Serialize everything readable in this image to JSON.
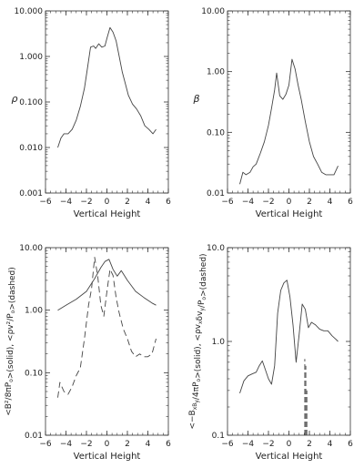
{
  "chart_data": [
    {
      "type": "line",
      "ylabel": "ρ",
      "xlabel": "Vertical Height",
      "xlim": [
        -6,
        6
      ],
      "ylim": [
        0.001,
        10
      ],
      "yscale": "log",
      "xticks": [
        "−6",
        "−4",
        "−2",
        "0",
        "2",
        "4",
        "6"
      ],
      "yticks": [
        "0.001",
        "0.010",
        "0.100",
        "1.000",
        "10.000"
      ],
      "series": [
        {
          "style": "solid",
          "x": [
            -4.8,
            -4.5,
            -4.2,
            -3.8,
            -3.4,
            -3.0,
            -2.6,
            -2.2,
            -1.9,
            -1.6,
            -1.3,
            -1.1,
            -0.8,
            -0.5,
            -0.2,
            0.0,
            0.3,
            0.6,
            0.9,
            1.2,
            1.5,
            1.8,
            2.1,
            2.5,
            2.9,
            3.3,
            3.7,
            4.1,
            4.5,
            4.8
          ],
          "y": [
            0.01,
            0.016,
            0.02,
            0.02,
            0.025,
            0.04,
            0.08,
            0.2,
            0.55,
            1.6,
            1.7,
            1.5,
            1.9,
            1.6,
            1.7,
            2.5,
            4.3,
            3.4,
            2.2,
            1.0,
            0.45,
            0.25,
            0.14,
            0.09,
            0.07,
            0.05,
            0.03,
            0.025,
            0.02,
            0.025
          ]
        }
      ]
    },
    {
      "type": "line",
      "ylabel": "β",
      "xlabel": "Vertical Height",
      "xlim": [
        -6,
        6
      ],
      "ylim": [
        0.01,
        10
      ],
      "yscale": "log",
      "xticks": [
        "−6",
        "−4",
        "−2",
        "0",
        "2",
        "4",
        "6"
      ],
      "yticks": [
        "0.01",
        "0.10",
        "1.00",
        "10.00"
      ],
      "series": [
        {
          "style": "solid",
          "x": [
            -4.8,
            -4.5,
            -4.2,
            -3.8,
            -3.5,
            -3.2,
            -2.8,
            -2.4,
            -2.0,
            -1.7,
            -1.4,
            -1.2,
            -0.9,
            -0.6,
            -0.3,
            0.0,
            0.3,
            0.6,
            0.9,
            1.2,
            1.6,
            2.0,
            2.4,
            2.8,
            3.2,
            3.6,
            4.0,
            4.4,
            4.8
          ],
          "y": [
            0.014,
            0.022,
            0.02,
            0.022,
            0.027,
            0.03,
            0.045,
            0.07,
            0.13,
            0.25,
            0.5,
            0.95,
            0.4,
            0.35,
            0.42,
            0.6,
            1.6,
            1.1,
            0.6,
            0.35,
            0.15,
            0.07,
            0.04,
            0.03,
            0.022,
            0.02,
            0.02,
            0.02,
            0.028
          ]
        }
      ]
    },
    {
      "type": "line",
      "ylabel": "<B²/8πP_o>(solid), <ρv²/P_o>(dashed)",
      "xlabel": "Vertical Height",
      "xlim": [
        -6,
        6
      ],
      "ylim": [
        0.01,
        10
      ],
      "yscale": "log",
      "xticks": [
        "−6",
        "−4",
        "−2",
        "0",
        "2",
        "4",
        "6"
      ],
      "yticks": [
        "0.01",
        "0.10",
        "1.00",
        "10.00"
      ],
      "series": [
        {
          "style": "solid",
          "x": [
            -4.8,
            -4.0,
            -3.0,
            -2.0,
            -1.2,
            -0.6,
            -0.2,
            0.2,
            0.6,
            1.0,
            1.4,
            2.0,
            2.8,
            3.6,
            4.4,
            4.8
          ],
          "y": [
            1.0,
            1.2,
            1.5,
            2.0,
            3.2,
            4.8,
            6.0,
            6.5,
            4.5,
            3.5,
            4.3,
            3.0,
            2.0,
            1.6,
            1.3,
            1.2
          ]
        },
        {
          "style": "dashed",
          "x": [
            -4.8,
            -4.6,
            -4.2,
            -3.8,
            -3.4,
            -3.0,
            -2.6,
            -2.2,
            -1.8,
            -1.5,
            -1.2,
            -0.9,
            -0.6,
            -0.3,
            0.0,
            0.3,
            0.6,
            0.9,
            1.2,
            1.6,
            2.0,
            2.4,
            2.8,
            3.2,
            3.6,
            4.0,
            4.4,
            4.8
          ],
          "y": [
            0.04,
            0.07,
            0.05,
            0.045,
            0.06,
            0.09,
            0.12,
            0.35,
            1.2,
            2.2,
            7.0,
            3.5,
            1.2,
            0.8,
            2.0,
            4.5,
            3.6,
            1.6,
            0.9,
            0.5,
            0.35,
            0.22,
            0.18,
            0.2,
            0.18,
            0.18,
            0.2,
            0.35
          ]
        }
      ]
    },
    {
      "type": "line",
      "ylabel": "<−B_xB_y/4πP_o>(solid), <ρv_xδv_y/P_o>(dashed)",
      "xlabel": "Vertical Height",
      "xlim": [
        -6,
        6
      ],
      "ylim": [
        0.1,
        10
      ],
      "yscale": "log",
      "xticks": [
        "−6",
        "−4",
        "−2",
        "0",
        "2",
        "4",
        "6"
      ],
      "yticks": [
        "0.1",
        "1.0",
        "10.0"
      ],
      "series": [
        {
          "style": "solid",
          "x": [
            -4.8,
            -4.4,
            -4.0,
            -3.6,
            -3.2,
            -2.9,
            -2.6,
            -2.3,
            -2.0,
            -1.7,
            -1.4,
            -1.1,
            -0.8,
            -0.5,
            -0.2,
            0.1,
            0.4,
            0.7,
            1.0,
            1.3,
            1.6,
            1.9,
            2.2,
            2.6,
            3.0,
            3.4,
            3.8,
            4.2,
            4.6,
            4.8
          ],
          "y": [
            0.28,
            0.38,
            0.43,
            0.45,
            0.47,
            0.55,
            0.62,
            0.5,
            0.4,
            0.35,
            0.55,
            2.0,
            3.5,
            4.2,
            4.5,
            3.0,
            1.5,
            0.6,
            1.2,
            2.5,
            2.2,
            1.4,
            1.6,
            1.5,
            1.35,
            1.3,
            1.3,
            1.15,
            1.05,
            1.0
          ]
        },
        {
          "style": "dashed",
          "x": [
            1.55,
            1.55,
            1.65,
            1.65,
            1.75,
            1.75
          ],
          "y": [
            0.1,
            0.65,
            0.1,
            0.55,
            0.1,
            0.3
          ]
        }
      ]
    }
  ]
}
